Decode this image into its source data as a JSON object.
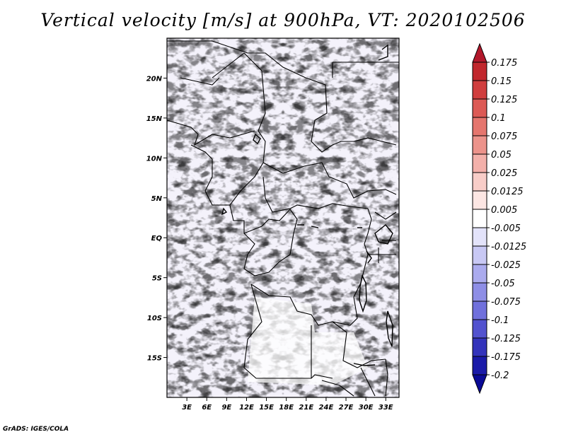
{
  "title": "Vertical velocity [m/s] at 900hPa, VT: 2020102506",
  "credit": "GrADS: IGES/COLA",
  "map": {
    "lon_range": [
      0,
      35
    ],
    "lat_range": [
      -20,
      25
    ],
    "x_ticks": [
      "3E",
      "6E",
      "9E",
      "12E",
      "15E",
      "18E",
      "21E",
      "24E",
      "27E",
      "30E",
      "33E"
    ],
    "x_tick_values": [
      3,
      6,
      9,
      12,
      15,
      18,
      21,
      24,
      27,
      30,
      33
    ],
    "y_ticks": [
      "20N",
      "15N",
      "10N",
      "5N",
      "EQ",
      "5S",
      "10S",
      "15S"
    ],
    "y_tick_values": [
      20,
      15,
      10,
      5,
      0,
      -5,
      -10,
      -15
    ],
    "field": "vertical velocity",
    "units": "m/s",
    "pressure_level": "900hPa",
    "valid_time": "2020102506"
  },
  "colorbar": {
    "levels": [
      "0.175",
      "0.15",
      "0.125",
      "0.1",
      "0.075",
      "0.05",
      "0.025",
      "0.0125",
      "0.005",
      "-0.005",
      "-0.0125",
      "-0.025",
      "-0.05",
      "-0.075",
      "-0.1",
      "-0.125",
      "-0.175",
      "-0.2"
    ],
    "colors": [
      "#b2182b",
      "#c1272d",
      "#d03e3e",
      "#dc5a55",
      "#e5766e",
      "#ec938b",
      "#f3b0aa",
      "#f8cdc8",
      "#fce6e3",
      "#ffffff",
      "#e3e3fa",
      "#c8c8f4",
      "#ababee",
      "#8e8ee6",
      "#7070dc",
      "#5252cf",
      "#3333bb",
      "#1a1aa8",
      "#0a0a96"
    ],
    "colors_note": "top to bottom"
  }
}
